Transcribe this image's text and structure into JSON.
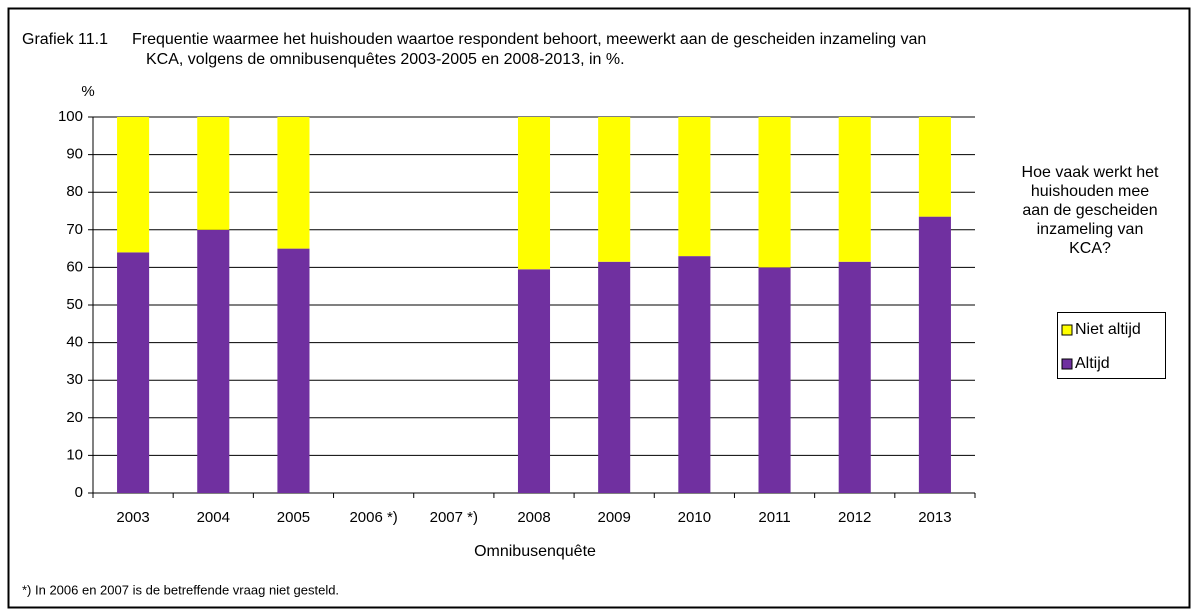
{
  "chart_data": {
    "type": "stacked_bar",
    "title_label": "Grafiek 11.1",
    "title": [
      "Frequentie waarmee het huishouden waartoe respondent behoort, meewerkt aan de gescheiden inzameling van",
      "KCA, volgens de omnibusenquêtes 2003-2005 en 2008-2013, in %."
    ],
    "y_unit": "%",
    "x_label": "Omnibusenquête",
    "footnote": "*) In 2006 en 2007 is de betreffende vraag niet gesteld.",
    "legend_title": [
      "Hoe vaak werkt het",
      "huishouden mee",
      "aan de gescheiden",
      "inzameling van",
      "KCA?"
    ],
    "categories": [
      "2003",
      "2004",
      "2005",
      "2006 *)",
      "2007 *)",
      "2008",
      "2009",
      "2010",
      "2011",
      "2012",
      "2013"
    ],
    "series": [
      {
        "name": "Altijd",
        "color": "#7030a0",
        "values": [
          64,
          70,
          65,
          null,
          null,
          59.5,
          61.5,
          63,
          60,
          61.5,
          73.5
        ]
      },
      {
        "name": "Niet altijd",
        "color": "#ffff00",
        "values": [
          36,
          30,
          35,
          null,
          null,
          40.5,
          38.5,
          37,
          40,
          38.5,
          26.5
        ]
      }
    ],
    "ylim": [
      0,
      100
    ],
    "yticks": [
      0,
      10,
      20,
      30,
      40,
      50,
      60,
      70,
      80,
      90,
      100
    ],
    "grid": true,
    "legend": "right"
  }
}
